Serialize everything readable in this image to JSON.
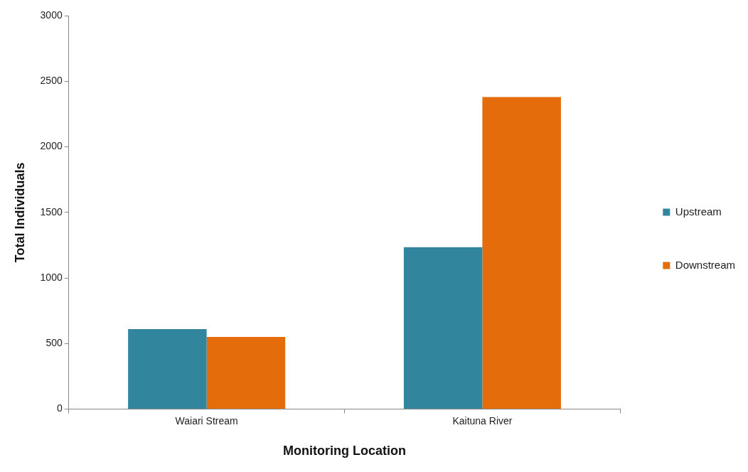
{
  "chart_data": {
    "type": "bar",
    "xlabel": "Monitoring Location",
    "ylabel": "Total Individuals",
    "categories": [
      "Waiari Stream",
      "Kaituna River"
    ],
    "series": [
      {
        "name": "Upstream",
        "color": "#31859c",
        "values": [
          610,
          1235
        ]
      },
      {
        "name": "Downstream",
        "color": "#e46c0a",
        "values": [
          550,
          2380
        ]
      }
    ],
    "ylim": [
      0,
      3000
    ],
    "yticks": [
      0,
      500,
      1000,
      1500,
      2000,
      2500,
      3000
    ],
    "legend": "right"
  }
}
